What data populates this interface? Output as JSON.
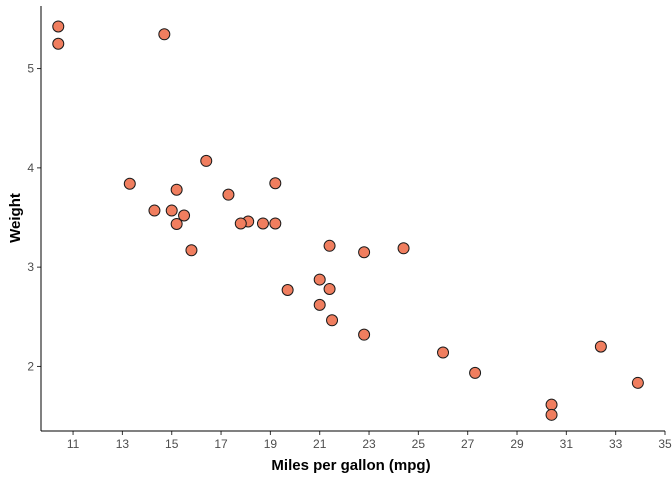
{
  "chart_data": {
    "type": "scatter",
    "xlabel": "Miles per gallon (mpg)",
    "ylabel": "Weight",
    "xlim": [
      9.7,
      35
    ],
    "ylim": [
      1.35,
      5.63
    ],
    "x_ticks": [
      11,
      13,
      15,
      17,
      19,
      21,
      23,
      25,
      27,
      29,
      31,
      33,
      35
    ],
    "y_ticks": [
      2,
      3,
      4,
      5
    ],
    "grid": false,
    "legend": "none",
    "point_fill": "#F07E5F",
    "point_stroke": "#1a1a1a",
    "points": [
      {
        "x": 21.0,
        "y": 2.62
      },
      {
        "x": 21.0,
        "y": 2.875
      },
      {
        "x": 22.8,
        "y": 2.32
      },
      {
        "x": 21.4,
        "y": 3.215
      },
      {
        "x": 18.7,
        "y": 3.44
      },
      {
        "x": 18.1,
        "y": 3.46
      },
      {
        "x": 14.3,
        "y": 3.57
      },
      {
        "x": 24.4,
        "y": 3.19
      },
      {
        "x": 22.8,
        "y": 3.15
      },
      {
        "x": 19.2,
        "y": 3.44
      },
      {
        "x": 17.8,
        "y": 3.44
      },
      {
        "x": 16.4,
        "y": 4.07
      },
      {
        "x": 17.3,
        "y": 3.73
      },
      {
        "x": 15.2,
        "y": 3.78
      },
      {
        "x": 10.4,
        "y": 5.25
      },
      {
        "x": 10.4,
        "y": 5.424
      },
      {
        "x": 14.7,
        "y": 5.345
      },
      {
        "x": 32.4,
        "y": 2.2
      },
      {
        "x": 30.4,
        "y": 1.615
      },
      {
        "x": 33.9,
        "y": 1.835
      },
      {
        "x": 21.5,
        "y": 2.465
      },
      {
        "x": 15.5,
        "y": 3.52
      },
      {
        "x": 15.2,
        "y": 3.435
      },
      {
        "x": 13.3,
        "y": 3.84
      },
      {
        "x": 19.2,
        "y": 3.845
      },
      {
        "x": 27.3,
        "y": 1.935
      },
      {
        "x": 26.0,
        "y": 2.14
      },
      {
        "x": 30.4,
        "y": 1.513
      },
      {
        "x": 15.8,
        "y": 3.17
      },
      {
        "x": 19.7,
        "y": 2.77
      },
      {
        "x": 15.0,
        "y": 3.57
      },
      {
        "x": 21.4,
        "y": 2.78
      }
    ]
  }
}
